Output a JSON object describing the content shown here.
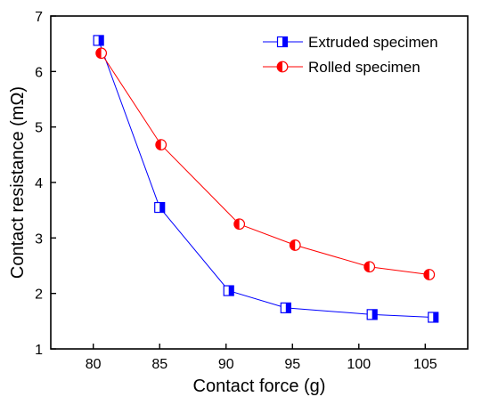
{
  "chart_data": {
    "type": "line",
    "xlabel": "Contact force (g)",
    "ylabel": "Contact resistance (mΩ)",
    "xlim": [
      76.8,
      108.2
    ],
    "ylim": [
      1,
      7
    ],
    "x_ticks": [
      80,
      85,
      90,
      95,
      100,
      105
    ],
    "y_ticks": [
      1,
      2,
      3,
      4,
      5,
      6,
      7
    ],
    "legend_position": "top-right",
    "grid": false,
    "series": [
      {
        "name": "Extruded specimen",
        "color": "#0000ff",
        "marker": "half-filled-square",
        "x": [
          80.4,
          85.0,
          90.2,
          94.5,
          101.0,
          105.6
        ],
        "y": [
          6.56,
          3.55,
          2.05,
          1.74,
          1.62,
          1.57
        ]
      },
      {
        "name": "Rolled specimen",
        "color": "#ff0000",
        "marker": "half-filled-circle",
        "x": [
          80.6,
          85.1,
          91.0,
          95.2,
          100.8,
          105.3
        ],
        "y": [
          6.33,
          4.68,
          3.25,
          2.87,
          2.48,
          2.34
        ]
      }
    ]
  }
}
